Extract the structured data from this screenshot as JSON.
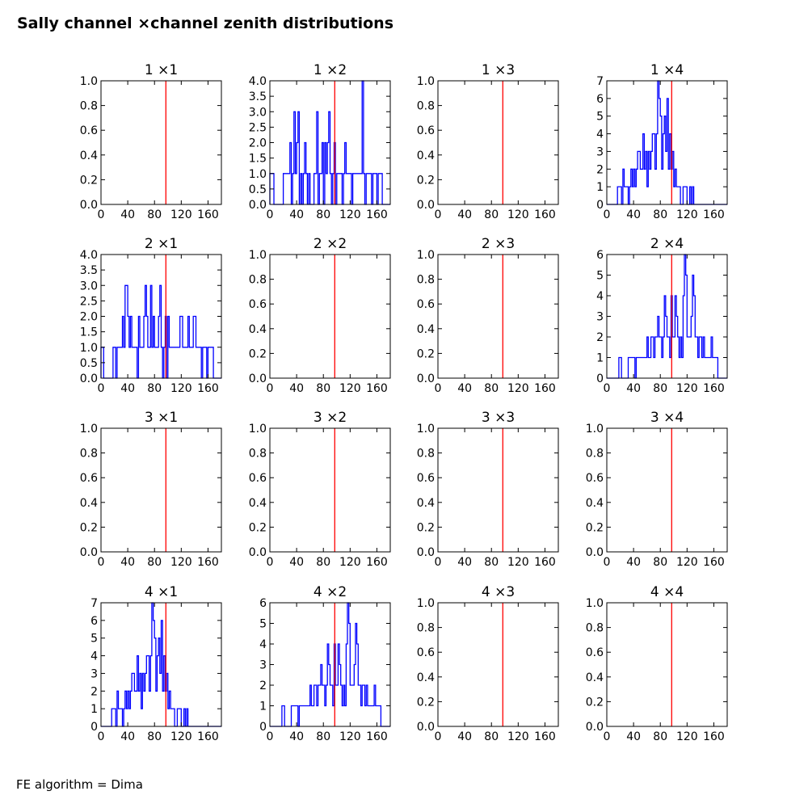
{
  "figure": {
    "title": "Sally channel ×channel zenith distributions",
    "footer": "FE algorithm = Dima",
    "colors": {
      "histogram": "#0000ff",
      "reference_line": "#ff0000",
      "axes": "#000000"
    }
  },
  "chart_data": [
    {
      "type": "histogram",
      "title": "1 ×1",
      "xlim": [
        0,
        180
      ],
      "xticks": [
        0,
        40,
        80,
        120,
        160
      ],
      "ylim": [
        0,
        1
      ],
      "yticks": [
        0.0,
        0.2,
        0.4,
        0.6,
        0.8,
        1.0
      ],
      "ytick_decimals": 1,
      "reference_line_x": 97,
      "bin_width": 2,
      "counts": []
    },
    {
      "type": "histogram",
      "title": "1 ×2",
      "xlim": [
        0,
        180
      ],
      "xticks": [
        0,
        40,
        80,
        120,
        160
      ],
      "ylim": [
        0,
        4
      ],
      "yticks": [
        0.0,
        0.5,
        1.0,
        1.5,
        2.0,
        2.5,
        3.0,
        3.5,
        4.0
      ],
      "ytick_decimals": 1,
      "reference_line_x": 97,
      "bin_width": 2,
      "counts": [
        1,
        1,
        1,
        0,
        0,
        0,
        0,
        0,
        0,
        0,
        1,
        1,
        1,
        1,
        1,
        2,
        0,
        1,
        3,
        1,
        2,
        3,
        0,
        1,
        0,
        1,
        2,
        1,
        0,
        1,
        0,
        0,
        0,
        1,
        1,
        3,
        0,
        1,
        1,
        2,
        0,
        2,
        1,
        2,
        3,
        1,
        0,
        1,
        2,
        0,
        1,
        1,
        1,
        1,
        0,
        1,
        2,
        1,
        1,
        1,
        1,
        0,
        1,
        1,
        1,
        1,
        1,
        1,
        1,
        4,
        1,
        0,
        1,
        1,
        1,
        1,
        0,
        1,
        1,
        1,
        0,
        1,
        1,
        1,
        0,
        0,
        0,
        0,
        0,
        0
      ]
    },
    {
      "type": "histogram",
      "title": "1 ×3",
      "xlim": [
        0,
        180
      ],
      "xticks": [
        0,
        40,
        80,
        120,
        160
      ],
      "ylim": [
        0,
        1
      ],
      "yticks": [
        0.0,
        0.2,
        0.4,
        0.6,
        0.8,
        1.0
      ],
      "ytick_decimals": 1,
      "reference_line_x": 97,
      "bin_width": 2,
      "counts": []
    },
    {
      "type": "histogram",
      "title": "1 ×4",
      "xlim": [
        0,
        180
      ],
      "xticks": [
        0,
        40,
        80,
        120,
        160
      ],
      "ylim": [
        0,
        7
      ],
      "yticks": [
        0,
        1,
        2,
        3,
        4,
        5,
        6,
        7
      ],
      "ytick_decimals": 0,
      "reference_line_x": 97,
      "bin_width": 2,
      "counts": [
        0,
        0,
        0,
        0,
        0,
        0,
        0,
        0,
        1,
        1,
        1,
        0,
        2,
        1,
        1,
        1,
        0,
        1,
        2,
        1,
        2,
        1,
        2,
        3,
        3,
        2,
        2,
        4,
        2,
        3,
        1,
        3,
        2,
        3,
        4,
        4,
        2,
        4,
        7,
        6,
        5,
        2,
        4,
        5,
        3,
        6,
        2,
        4,
        2,
        3,
        1,
        2,
        1,
        1,
        1,
        0,
        0,
        1,
        1,
        1,
        0,
        0,
        1,
        0,
        1,
        0,
        0,
        0,
        0,
        0,
        0,
        0,
        0,
        0,
        0,
        0,
        0,
        0,
        0,
        0,
        0,
        0,
        0,
        0,
        0,
        0,
        0,
        0,
        0,
        0
      ]
    },
    {
      "type": "histogram",
      "title": "2 ×1",
      "xlim": [
        0,
        180
      ],
      "xticks": [
        0,
        40,
        80,
        120,
        160
      ],
      "ylim": [
        0,
        4
      ],
      "yticks": [
        0.0,
        0.5,
        1.0,
        1.5,
        2.0,
        2.5,
        3.0,
        3.5,
        4.0
      ],
      "ytick_decimals": 1,
      "reference_line_x": 97,
      "bin_width": 2,
      "counts": [
        1,
        1,
        0,
        0,
        0,
        0,
        0,
        0,
        0,
        1,
        1,
        0,
        1,
        1,
        1,
        1,
        2,
        1,
        3,
        3,
        2,
        1,
        2,
        1,
        1,
        1,
        1,
        0,
        2,
        1,
        1,
        1,
        2,
        3,
        2,
        1,
        1,
        3,
        1,
        2,
        1,
        1,
        1,
        2,
        3,
        1,
        0,
        1,
        2,
        0,
        2,
        1,
        1,
        1,
        1,
        1,
        1,
        1,
        1,
        2,
        2,
        1,
        1,
        1,
        1,
        2,
        1,
        1,
        1,
        2,
        2,
        1,
        1,
        1,
        1,
        0,
        1,
        1,
        1,
        0,
        1,
        1,
        1,
        1,
        0,
        0,
        0,
        0,
        0,
        0
      ]
    },
    {
      "type": "histogram",
      "title": "2 ×2",
      "xlim": [
        0,
        180
      ],
      "xticks": [
        0,
        40,
        80,
        120,
        160
      ],
      "ylim": [
        0,
        1
      ],
      "yticks": [
        0.0,
        0.2,
        0.4,
        0.6,
        0.8,
        1.0
      ],
      "ytick_decimals": 1,
      "reference_line_x": 97,
      "bin_width": 2,
      "counts": []
    },
    {
      "type": "histogram",
      "title": "2 ×3",
      "xlim": [
        0,
        180
      ],
      "xticks": [
        0,
        40,
        80,
        120,
        160
      ],
      "ylim": [
        0,
        1
      ],
      "yticks": [
        0.0,
        0.2,
        0.4,
        0.6,
        0.8,
        1.0
      ],
      "ytick_decimals": 1,
      "reference_line_x": 97,
      "bin_width": 2,
      "counts": []
    },
    {
      "type": "histogram",
      "title": "2 ×4",
      "xlim": [
        0,
        180
      ],
      "xticks": [
        0,
        40,
        80,
        120,
        160
      ],
      "ylim": [
        0,
        6
      ],
      "yticks": [
        0,
        1,
        2,
        3,
        4,
        5,
        6
      ],
      "ytick_decimals": 0,
      "reference_line_x": 97,
      "bin_width": 2,
      "counts": [
        0,
        0,
        0,
        0,
        0,
        0,
        0,
        0,
        0,
        1,
        1,
        0,
        0,
        0,
        0,
        0,
        1,
        1,
        1,
        1,
        1,
        0,
        1,
        1,
        1,
        1,
        1,
        1,
        1,
        1,
        2,
        1,
        1,
        2,
        2,
        1,
        2,
        2,
        3,
        2,
        2,
        1,
        2,
        4,
        3,
        2,
        2,
        1,
        4,
        2,
        2,
        4,
        3,
        2,
        1,
        2,
        1,
        4,
        6,
        5,
        2,
        2,
        2,
        3,
        5,
        4,
        2,
        2,
        1,
        2,
        2,
        1,
        2,
        1,
        1,
        1,
        1,
        1,
        2,
        1,
        1,
        1,
        1,
        0,
        0,
        0,
        0,
        0,
        0,
        0
      ]
    },
    {
      "type": "histogram",
      "title": "3 ×1",
      "xlim": [
        0,
        180
      ],
      "xticks": [
        0,
        40,
        80,
        120,
        160
      ],
      "ylim": [
        0,
        1
      ],
      "yticks": [
        0.0,
        0.2,
        0.4,
        0.6,
        0.8,
        1.0
      ],
      "ytick_decimals": 1,
      "reference_line_x": 97,
      "bin_width": 2,
      "counts": []
    },
    {
      "type": "histogram",
      "title": "3 ×2",
      "xlim": [
        0,
        180
      ],
      "xticks": [
        0,
        40,
        80,
        120,
        160
      ],
      "ylim": [
        0,
        1
      ],
      "yticks": [
        0.0,
        0.2,
        0.4,
        0.6,
        0.8,
        1.0
      ],
      "ytick_decimals": 1,
      "reference_line_x": 97,
      "bin_width": 2,
      "counts": []
    },
    {
      "type": "histogram",
      "title": "3 ×3",
      "xlim": [
        0,
        180
      ],
      "xticks": [
        0,
        40,
        80,
        120,
        160
      ],
      "ylim": [
        0,
        1
      ],
      "yticks": [
        0.0,
        0.2,
        0.4,
        0.6,
        0.8,
        1.0
      ],
      "ytick_decimals": 1,
      "reference_line_x": 97,
      "bin_width": 2,
      "counts": []
    },
    {
      "type": "histogram",
      "title": "3 ×4",
      "xlim": [
        0,
        180
      ],
      "xticks": [
        0,
        40,
        80,
        120,
        160
      ],
      "ylim": [
        0,
        1
      ],
      "yticks": [
        0.0,
        0.2,
        0.4,
        0.6,
        0.8,
        1.0
      ],
      "ytick_decimals": 1,
      "reference_line_x": 97,
      "bin_width": 2,
      "counts": []
    },
    {
      "type": "histogram",
      "title": "4 ×1",
      "xlim": [
        0,
        180
      ],
      "xticks": [
        0,
        40,
        80,
        120,
        160
      ],
      "ylim": [
        0,
        7
      ],
      "yticks": [
        0,
        1,
        2,
        3,
        4,
        5,
        6,
        7
      ],
      "ytick_decimals": 0,
      "reference_line_x": 97,
      "bin_width": 2,
      "counts": [
        0,
        0,
        0,
        0,
        0,
        0,
        0,
        0,
        1,
        1,
        1,
        0,
        2,
        1,
        1,
        1,
        0,
        1,
        2,
        1,
        2,
        1,
        2,
        3,
        3,
        2,
        2,
        4,
        2,
        3,
        1,
        3,
        2,
        3,
        4,
        4,
        2,
        4,
        7,
        6,
        5,
        2,
        4,
        5,
        3,
        6,
        2,
        4,
        2,
        3,
        1,
        2,
        1,
        1,
        1,
        0,
        0,
        1,
        1,
        1,
        0,
        0,
        1,
        0,
        1,
        0,
        0,
        0,
        0,
        0,
        0,
        0,
        0,
        0,
        0,
        0,
        0,
        0,
        0,
        0,
        0,
        0,
        0,
        0,
        0,
        0,
        0,
        0,
        0,
        0
      ]
    },
    {
      "type": "histogram",
      "title": "4 ×2",
      "xlim": [
        0,
        180
      ],
      "xticks": [
        0,
        40,
        80,
        120,
        160
      ],
      "ylim": [
        0,
        6
      ],
      "yticks": [
        0,
        1,
        2,
        3,
        4,
        5,
        6
      ],
      "ytick_decimals": 0,
      "reference_line_x": 97,
      "bin_width": 2,
      "counts": [
        0,
        0,
        0,
        0,
        0,
        0,
        0,
        0,
        0,
        1,
        1,
        0,
        0,
        0,
        0,
        0,
        1,
        1,
        1,
        1,
        1,
        0,
        1,
        1,
        1,
        1,
        1,
        1,
        1,
        1,
        2,
        1,
        1,
        2,
        2,
        1,
        2,
        2,
        3,
        2,
        2,
        1,
        2,
        4,
        3,
        2,
        2,
        1,
        4,
        2,
        2,
        4,
        3,
        2,
        1,
        2,
        1,
        4,
        6,
        5,
        2,
        2,
        2,
        3,
        5,
        4,
        2,
        2,
        1,
        2,
        2,
        1,
        2,
        1,
        1,
        1,
        1,
        1,
        2,
        1,
        1,
        1,
        1,
        0,
        0,
        0,
        0,
        0,
        0,
        0
      ]
    },
    {
      "type": "histogram",
      "title": "4 ×3",
      "xlim": [
        0,
        180
      ],
      "xticks": [
        0,
        40,
        80,
        120,
        160
      ],
      "ylim": [
        0,
        1
      ],
      "yticks": [
        0.0,
        0.2,
        0.4,
        0.6,
        0.8,
        1.0
      ],
      "ytick_decimals": 1,
      "reference_line_x": 97,
      "bin_width": 2,
      "counts": []
    },
    {
      "type": "histogram",
      "title": "4 ×4",
      "xlim": [
        0,
        180
      ],
      "xticks": [
        0,
        40,
        80,
        120,
        160
      ],
      "ylim": [
        0,
        1
      ],
      "yticks": [
        0.0,
        0.2,
        0.4,
        0.6,
        0.8,
        1.0
      ],
      "ytick_decimals": 1,
      "reference_line_x": 97,
      "bin_width": 2,
      "counts": []
    }
  ]
}
